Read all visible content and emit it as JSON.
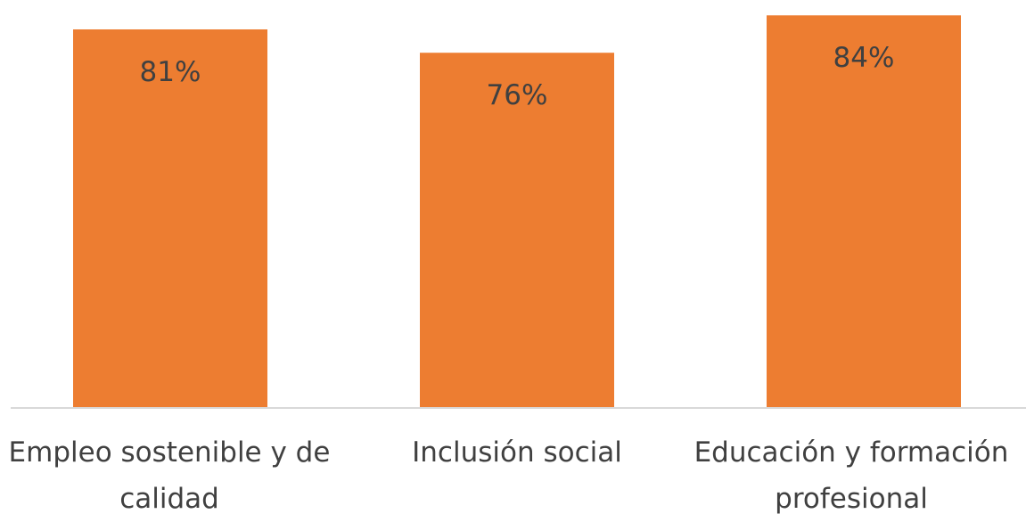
{
  "chart_data": {
    "type": "bar",
    "categories": [
      "Empleo sostenible y de calidad",
      "Inclusión social",
      "Educación y formación profesional"
    ],
    "values": [
      81,
      76,
      84
    ],
    "data_labels": [
      "81%",
      "76%",
      "84%"
    ],
    "unit": "%",
    "title": "",
    "xlabel": "",
    "ylabel": "",
    "ylim": [
      0,
      85
    ],
    "grid": false,
    "legend": "none",
    "bar_color": "#ED7D31",
    "axis_color": "#D9D9D9",
    "text_color": "#404040"
  }
}
